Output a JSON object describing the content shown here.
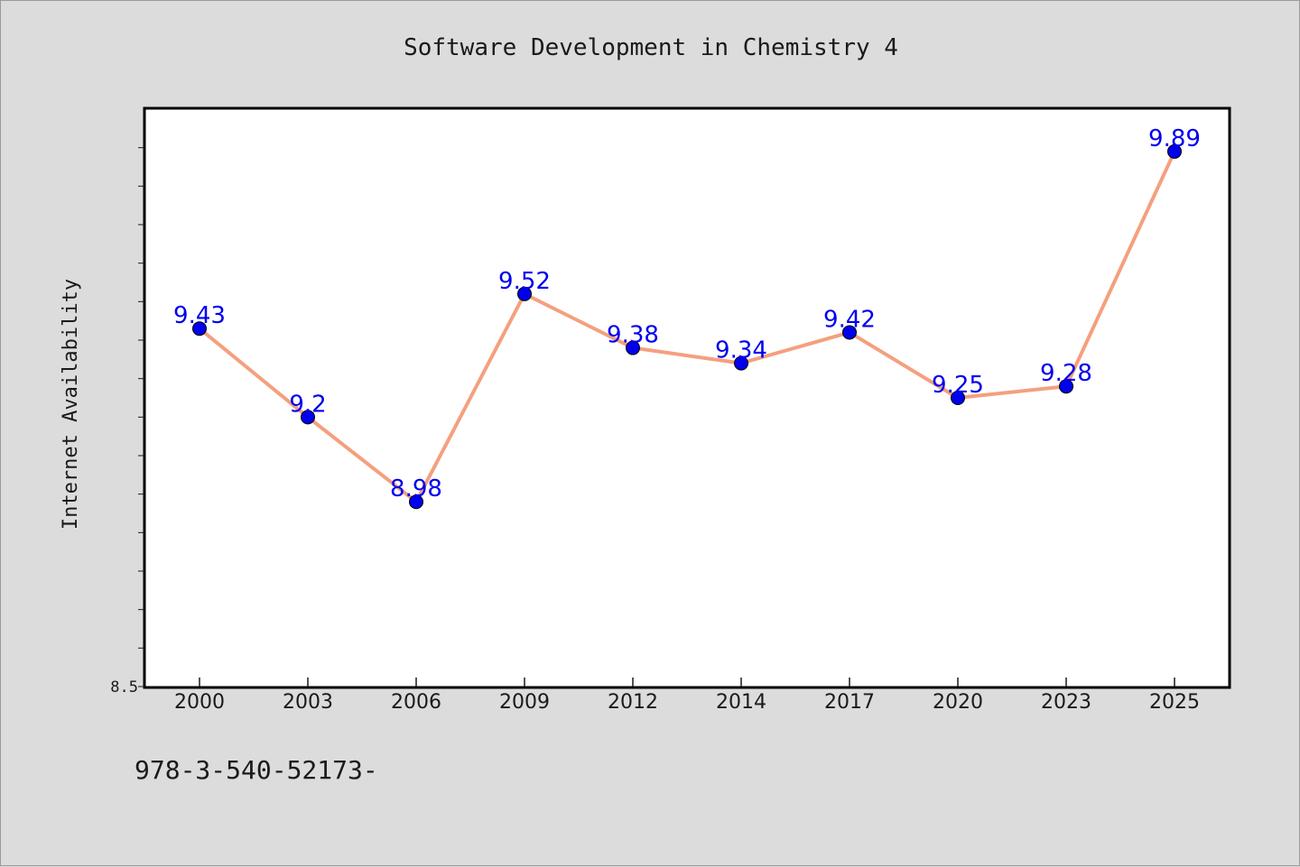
{
  "chart_data": {
    "type": "line",
    "title": "Software Development in Chemistry 4",
    "xlabel": "",
    "ylabel": "Internet Availability",
    "categories": [
      "2000",
      "2003",
      "2006",
      "2009",
      "2012",
      "2014",
      "2017",
      "2020",
      "2023",
      "2025"
    ],
    "series": [
      {
        "values": [
          9.43,
          9.2,
          8.98,
          9.52,
          9.38,
          9.34,
          9.42,
          9.25,
          9.28,
          9.89
        ],
        "data_labels": [
          "9.43",
          "9.2",
          "8.98",
          "9.52",
          "9.38",
          "9.34",
          "9.42",
          "9.25",
          "9.28",
          "9.89"
        ],
        "line_color": "#f4a07e",
        "marker_color": "#0000ee",
        "label_color": "#0000ee"
      }
    ],
    "ylim": [
      8.5,
      10.0
    ],
    "y_tick_labels": [
      "8.5"
    ],
    "grid": false,
    "legend": "none"
  },
  "footer": {
    "isbn_text": "978-3-540-52173-"
  },
  "colors": {
    "background": "#dcdcdc",
    "plot_area": "#ffffff",
    "axis": "#000000",
    "text": "#1a1a1a"
  }
}
